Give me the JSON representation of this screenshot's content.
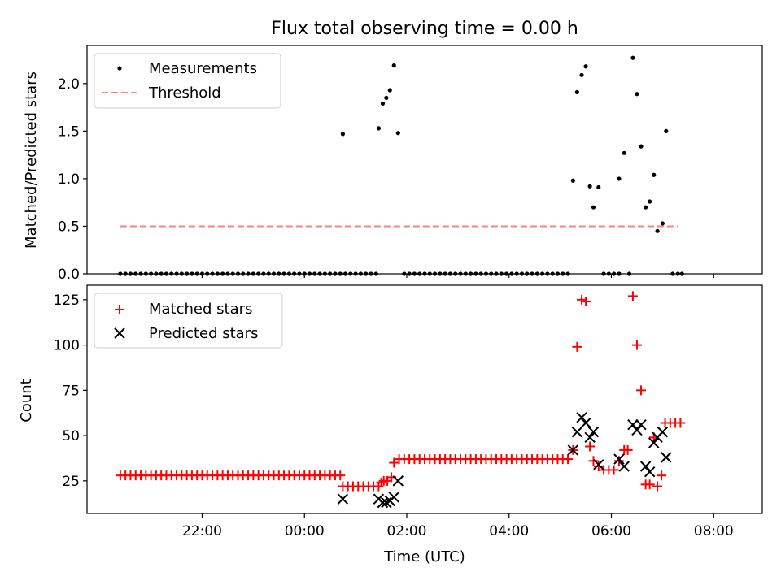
{
  "title": "Flux total observing time = 0.00 h",
  "chart_data": [
    {
      "type": "scatter",
      "ylabel": "Matched/Predicted stars",
      "xlim": [
        -2.25,
        10.95
      ],
      "ylim": [
        0,
        2.4
      ],
      "yticks": [
        0.0,
        0.5,
        1.0,
        1.5,
        2.0
      ],
      "ytick_labels": [
        "0.0",
        "0.5",
        "1.0",
        "1.5",
        "2.0"
      ],
      "grid": false,
      "legend_position": "top-left",
      "legend": [
        "Measurements",
        "Threshold"
      ],
      "series": [
        {
          "name": "Measurements",
          "marker": "dot",
          "color": "#000000",
          "points": [
            [
              -1.6,
              0
            ],
            [
              -1.5,
              0
            ],
            [
              -1.4,
              0
            ],
            [
              -1.3,
              0
            ],
            [
              -1.2,
              0
            ],
            [
              -1.1,
              0
            ],
            [
              -1.0,
              0
            ],
            [
              -0.9,
              0
            ],
            [
              -0.8,
              0
            ],
            [
              -0.7,
              0
            ],
            [
              -0.6,
              0
            ],
            [
              -0.5,
              0
            ],
            [
              -0.4,
              0
            ],
            [
              -0.3,
              0
            ],
            [
              -0.2,
              0
            ],
            [
              -0.1,
              0
            ],
            [
              0.0,
              0
            ],
            [
              0.1,
              0
            ],
            [
              0.2,
              0
            ],
            [
              0.3,
              0
            ],
            [
              0.4,
              0
            ],
            [
              0.5,
              0
            ],
            [
              0.6,
              0
            ],
            [
              0.7,
              0
            ],
            [
              0.8,
              0
            ],
            [
              0.9,
              0
            ],
            [
              1.0,
              0
            ],
            [
              1.1,
              0
            ],
            [
              1.2,
              0
            ],
            [
              1.3,
              0
            ],
            [
              1.4,
              0
            ],
            [
              1.5,
              0
            ],
            [
              1.6,
              0
            ],
            [
              1.7,
              0
            ],
            [
              1.8,
              0
            ],
            [
              1.9,
              0
            ],
            [
              2.0,
              0
            ],
            [
              2.1,
              0
            ],
            [
              2.2,
              0
            ],
            [
              2.3,
              0
            ],
            [
              2.4,
              0
            ],
            [
              2.5,
              0
            ],
            [
              2.6,
              0
            ],
            [
              2.7,
              0
            ],
            [
              2.8,
              0
            ],
            [
              2.9,
              0
            ],
            [
              3.0,
              0
            ],
            [
              3.1,
              0
            ],
            [
              3.2,
              0
            ],
            [
              3.3,
              0
            ],
            [
              3.4,
              0
            ],
            [
              2.75,
              1.47
            ],
            [
              3.45,
              1.53
            ],
            [
              3.53,
              1.79
            ],
            [
              3.6,
              1.85
            ],
            [
              3.67,
              1.93
            ],
            [
              3.75,
              2.19
            ],
            [
              3.83,
              1.48
            ],
            [
              3.95,
              0
            ],
            [
              4.05,
              0
            ],
            [
              4.15,
              0
            ],
            [
              4.25,
              0
            ],
            [
              4.35,
              0
            ],
            [
              4.45,
              0
            ],
            [
              4.55,
              0
            ],
            [
              4.65,
              0
            ],
            [
              4.75,
              0
            ],
            [
              4.85,
              0
            ],
            [
              4.95,
              0
            ],
            [
              5.05,
              0
            ],
            [
              5.15,
              0
            ],
            [
              5.25,
              0
            ],
            [
              5.35,
              0
            ],
            [
              5.45,
              0
            ],
            [
              5.55,
              0
            ],
            [
              5.65,
              0
            ],
            [
              5.75,
              0
            ],
            [
              5.85,
              0
            ],
            [
              5.95,
              0
            ],
            [
              6.05,
              0
            ],
            [
              6.15,
              0
            ],
            [
              6.25,
              0
            ],
            [
              6.35,
              0
            ],
            [
              6.45,
              0
            ],
            [
              6.55,
              0
            ],
            [
              6.65,
              0
            ],
            [
              6.75,
              0
            ],
            [
              6.85,
              0
            ],
            [
              6.95,
              0
            ],
            [
              7.05,
              0
            ],
            [
              7.15,
              0
            ],
            [
              7.25,
              0.98
            ],
            [
              7.33,
              1.91
            ],
            [
              7.42,
              2.09
            ],
            [
              7.5,
              2.18
            ],
            [
              7.58,
              0.92
            ],
            [
              7.65,
              0.7
            ],
            [
              7.75,
              0.91
            ],
            [
              7.85,
              0
            ],
            [
              7.95,
              0
            ],
            [
              8.05,
              0
            ],
            [
              8.15,
              0.0
            ],
            [
              8.35,
              0
            ],
            [
              8.15,
              1.0
            ],
            [
              8.25,
              1.27
            ],
            [
              8.42,
              2.27
            ],
            [
              8.5,
              1.89
            ],
            [
              8.58,
              1.34
            ],
            [
              8.67,
              0.7
            ],
            [
              8.75,
              0.76
            ],
            [
              8.83,
              1.04
            ],
            [
              8.9,
              0.45
            ],
            [
              9.0,
              0.53
            ],
            [
              9.07,
              1.5
            ],
            [
              9.2,
              0
            ],
            [
              9.3,
              0
            ],
            [
              9.38,
              0
            ]
          ]
        },
        {
          "name": "Threshold",
          "style": "dashed",
          "color": "#ff8080",
          "x": [
            -1.6,
            9.3
          ],
          "y": [
            0.5,
            0.5
          ]
        }
      ]
    },
    {
      "type": "scatter",
      "ylabel": "Count",
      "xlabel": "Time (UTC)",
      "xlim": [
        -2.25,
        10.95
      ],
      "ylim": [
        7,
        133
      ],
      "yticks": [
        25,
        50,
        75,
        100,
        125
      ],
      "ytick_labels": [
        "25",
        "50",
        "75",
        "100",
        "125"
      ],
      "xticks": [
        0,
        2,
        4,
        6,
        8,
        10
      ],
      "xtick_labels": [
        "22:00",
        "00:00",
        "02:00",
        "04:00",
        "06:00",
        "08:00"
      ],
      "grid": false,
      "legend_position": "top-left",
      "legend": [
        "Matched stars",
        "Predicted stars"
      ],
      "series": [
        {
          "name": "Matched stars",
          "marker": "plus",
          "color": "#ff0000",
          "points": [
            [
              -1.6,
              28
            ],
            [
              -1.5,
              28
            ],
            [
              -1.4,
              28
            ],
            [
              -1.3,
              28
            ],
            [
              -1.2,
              28
            ],
            [
              -1.1,
              28
            ],
            [
              -1.0,
              28
            ],
            [
              -0.9,
              28
            ],
            [
              -0.8,
              28
            ],
            [
              -0.7,
              28
            ],
            [
              -0.6,
              28
            ],
            [
              -0.5,
              28
            ],
            [
              -0.4,
              28
            ],
            [
              -0.3,
              28
            ],
            [
              -0.2,
              28
            ],
            [
              -0.1,
              28
            ],
            [
              0.0,
              28
            ],
            [
              0.1,
              28
            ],
            [
              0.2,
              28
            ],
            [
              0.3,
              28
            ],
            [
              0.4,
              28
            ],
            [
              0.5,
              28
            ],
            [
              0.6,
              28
            ],
            [
              0.7,
              28
            ],
            [
              0.8,
              28
            ],
            [
              0.9,
              28
            ],
            [
              1.0,
              28
            ],
            [
              1.1,
              28
            ],
            [
              1.2,
              28
            ],
            [
              1.3,
              28
            ],
            [
              1.4,
              28
            ],
            [
              1.5,
              28
            ],
            [
              1.6,
              28
            ],
            [
              1.7,
              28
            ],
            [
              1.8,
              28
            ],
            [
              1.9,
              28
            ],
            [
              2.0,
              28
            ],
            [
              2.1,
              28
            ],
            [
              2.2,
              28
            ],
            [
              2.3,
              28
            ],
            [
              2.4,
              28
            ],
            [
              2.5,
              28
            ],
            [
              2.6,
              28
            ],
            [
              2.7,
              28
            ],
            [
              2.75,
              22
            ],
            [
              2.85,
              22
            ],
            [
              2.95,
              22
            ],
            [
              3.05,
              22
            ],
            [
              3.15,
              22
            ],
            [
              3.25,
              22
            ],
            [
              3.35,
              22
            ],
            [
              3.45,
              22
            ],
            [
              3.5,
              24
            ],
            [
              3.55,
              25
            ],
            [
              3.62,
              25
            ],
            [
              3.7,
              27
            ],
            [
              3.75,
              35
            ],
            [
              3.85,
              37
            ],
            [
              3.95,
              37
            ],
            [
              4.05,
              37
            ],
            [
              4.15,
              37
            ],
            [
              4.25,
              37
            ],
            [
              4.35,
              37
            ],
            [
              4.45,
              37
            ],
            [
              4.55,
              37
            ],
            [
              4.65,
              37
            ],
            [
              4.75,
              37
            ],
            [
              4.85,
              37
            ],
            [
              4.95,
              37
            ],
            [
              5.05,
              37
            ],
            [
              5.15,
              37
            ],
            [
              5.25,
              37
            ],
            [
              5.35,
              37
            ],
            [
              5.45,
              37
            ],
            [
              5.55,
              37
            ],
            [
              5.65,
              37
            ],
            [
              5.75,
              37
            ],
            [
              5.85,
              37
            ],
            [
              5.95,
              37
            ],
            [
              6.05,
              37
            ],
            [
              6.15,
              37
            ],
            [
              6.25,
              37
            ],
            [
              6.35,
              37
            ],
            [
              6.45,
              37
            ],
            [
              6.55,
              37
            ],
            [
              6.65,
              37
            ],
            [
              6.75,
              37
            ],
            [
              6.85,
              37
            ],
            [
              6.95,
              37
            ],
            [
              7.05,
              37
            ],
            [
              7.15,
              37
            ],
            [
              7.25,
              42
            ],
            [
              7.33,
              99
            ],
            [
              7.42,
              125
            ],
            [
              7.5,
              124
            ],
            [
              7.58,
              44
            ],
            [
              7.65,
              36
            ],
            [
              7.75,
              33
            ],
            [
              7.85,
              31
            ],
            [
              7.95,
              31
            ],
            [
              8.05,
              31
            ],
            [
              8.15,
              36
            ],
            [
              8.25,
              42
            ],
            [
              8.32,
              42
            ],
            [
              8.42,
              127
            ],
            [
              8.5,
              100
            ],
            [
              8.58,
              75
            ],
            [
              8.67,
              23
            ],
            [
              8.75,
              23
            ],
            [
              8.83,
              49
            ],
            [
              8.9,
              22
            ],
            [
              8.98,
              28
            ],
            [
              9.05,
              57
            ],
            [
              9.15,
              57
            ],
            [
              9.25,
              57
            ],
            [
              9.35,
              57
            ]
          ]
        },
        {
          "name": "Predicted stars",
          "marker": "x",
          "color": "#000000",
          "points": [
            [
              2.75,
              15
            ],
            [
              3.45,
              15
            ],
            [
              3.53,
              13
            ],
            [
              3.6,
              13
            ],
            [
              3.67,
              14
            ],
            [
              3.75,
              16
            ],
            [
              3.83,
              25
            ],
            [
              7.25,
              42
            ],
            [
              7.33,
              52
            ],
            [
              7.42,
              60
            ],
            [
              7.5,
              57
            ],
            [
              7.58,
              49
            ],
            [
              7.65,
              52
            ],
            [
              7.75,
              34
            ],
            [
              8.15,
              37
            ],
            [
              8.25,
              33
            ],
            [
              8.42,
              56
            ],
            [
              8.5,
              53
            ],
            [
              8.58,
              56
            ],
            [
              8.67,
              33
            ],
            [
              8.75,
              30
            ],
            [
              8.83,
              46
            ],
            [
              8.9,
              49
            ],
            [
              9.0,
              52
            ],
            [
              9.07,
              38
            ]
          ]
        }
      ]
    }
  ]
}
